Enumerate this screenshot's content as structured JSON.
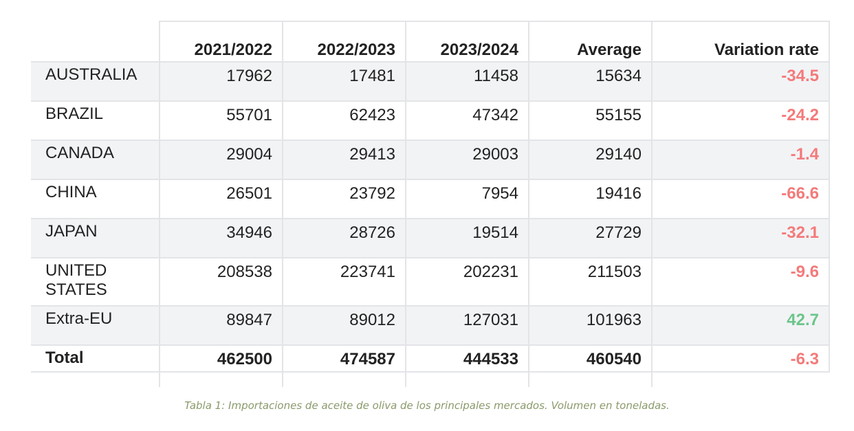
{
  "table": {
    "headers": [
      "",
      "2021/2022",
      "2022/2023",
      "2023/2024",
      "Average",
      "Variation rate"
    ],
    "rows": [
      {
        "label": "AUSTRALIA",
        "values": [
          "17962",
          "17481",
          "11458",
          "15634"
        ],
        "rate": "-34.5"
      },
      {
        "label": "BRAZIL",
        "values": [
          "55701",
          "62423",
          "47342",
          "55155"
        ],
        "rate": "-24.2"
      },
      {
        "label": "CANADA",
        "values": [
          "29004",
          "29413",
          "29003",
          "29140"
        ],
        "rate": "-1.4"
      },
      {
        "label": "CHINA",
        "values": [
          "26501",
          "23792",
          "7954",
          "19416"
        ],
        "rate": "-66.6"
      },
      {
        "label": "JAPAN",
        "values": [
          "34946",
          "28726",
          "19514",
          "27729"
        ],
        "rate": "-32.1"
      },
      {
        "label": "UNITED STATES",
        "values": [
          "208538",
          "223741",
          "202231",
          "211503"
        ],
        "rate": "-9.6"
      },
      {
        "label": "Extra-EU",
        "values": [
          "89847",
          "89012",
          "127031",
          "101963"
        ],
        "rate": "42.7"
      }
    ],
    "total": {
      "label": "Total",
      "values": [
        "462500",
        "474587",
        "444533",
        "460540"
      ],
      "rate": "-6.3"
    }
  },
  "caption": "Tabla 1: Importaciones de aceite de oliva de los principales mercados. Volumen en toneladas.",
  "colors": {
    "negative": "#f47a7a",
    "positive": "#6cc58a",
    "row_shade": "#f2f3f5",
    "border": "#e2e4e7",
    "caption": "#8a9a6a"
  }
}
